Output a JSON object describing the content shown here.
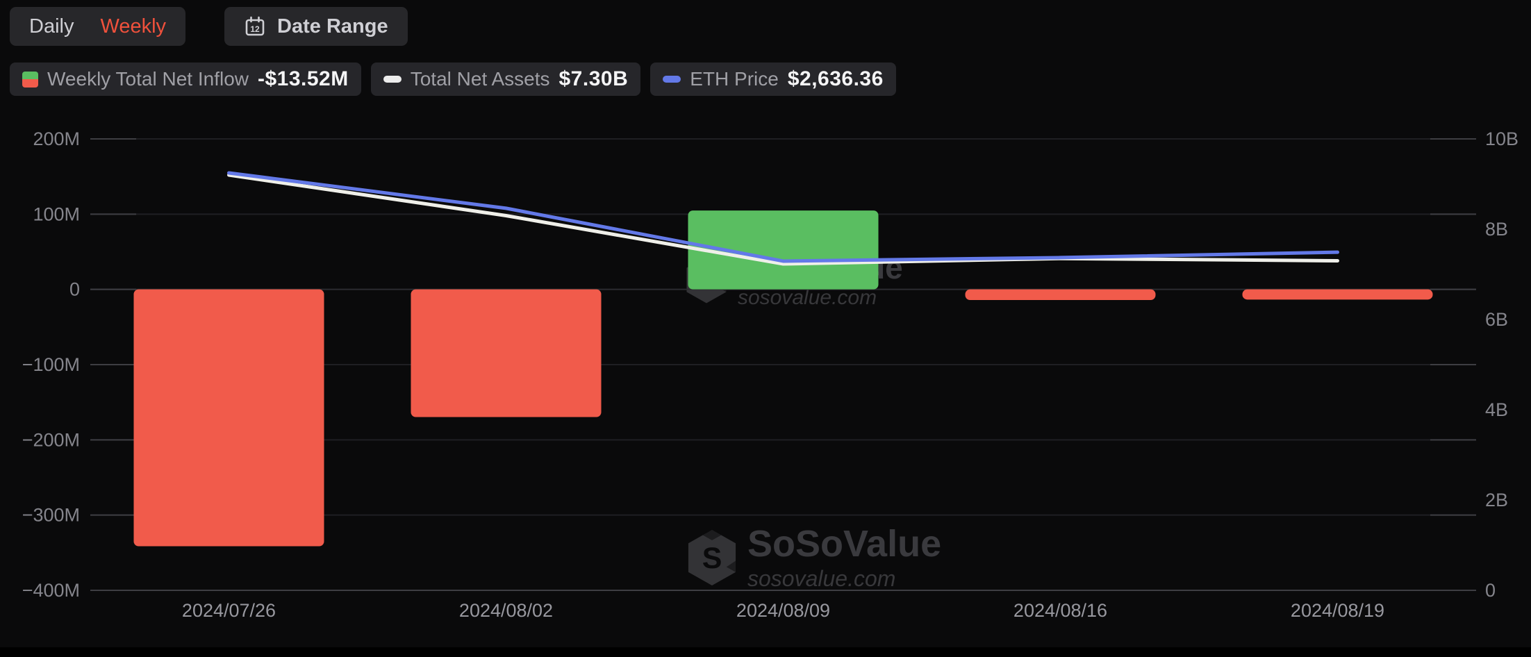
{
  "toolbar": {
    "daily_label": "Daily",
    "weekly_label": "Weekly",
    "date_range_label": "Date Range"
  },
  "legend": {
    "inflow": {
      "label": "Weekly Total Net Inflow",
      "value": "-$13.52M"
    },
    "assets": {
      "label": "Total Net Assets",
      "value": "$7.30B"
    },
    "eth": {
      "label": "ETH Price",
      "value": "$2,636.36"
    }
  },
  "watermark": {
    "brand": "SoSoValue",
    "domain": "sosovalue.com"
  },
  "colors": {
    "background": "#0a0a0b",
    "panel": "#27272a",
    "accent_active": "#f0513c",
    "bar_positive": "#5abe61",
    "bar_negative": "#f15b4b",
    "line_assets": "#efefe9",
    "line_eth": "#6379e8",
    "gridline": "#1f1f23",
    "axis_tick": "#3e3e43",
    "axis_text": "#85858c",
    "date_text": "#98989f"
  },
  "chart_data": {
    "type": "combo",
    "categories": [
      "2024/07/26",
      "2024/08/02",
      "2024/08/09",
      "2024/08/16",
      "2024/08/19"
    ],
    "series": [
      {
        "name": "Weekly Total Net Inflow",
        "type": "bar",
        "axis": "left",
        "unit": "USD millions",
        "values": [
          -341.4,
          -169.7,
          104.8,
          -14.2,
          -13.52
        ]
      },
      {
        "name": "Total Net Assets",
        "type": "line",
        "axis": "right",
        "unit": "USD billions",
        "values": [
          9.2,
          8.3,
          7.23,
          7.35,
          7.3
        ]
      },
      {
        "name": "ETH Price",
        "type": "line",
        "axis": "hidden",
        "unit": "USD",
        "values": [
          3271,
          2988,
          2565,
          2593,
          2636.36
        ]
      }
    ],
    "left_axis": {
      "tick_labels": [
        "200M",
        "100M",
        "0",
        "−100M",
        "−200M",
        "−300M",
        "−400M"
      ],
      "range_musd": [
        -400,
        200
      ]
    },
    "right_axis": {
      "tick_labels": [
        "10B",
        "8B",
        "6B",
        "4B",
        "2B",
        "0"
      ],
      "range_busd": [
        0,
        10
      ]
    },
    "grid": true,
    "legend_position": "top"
  }
}
